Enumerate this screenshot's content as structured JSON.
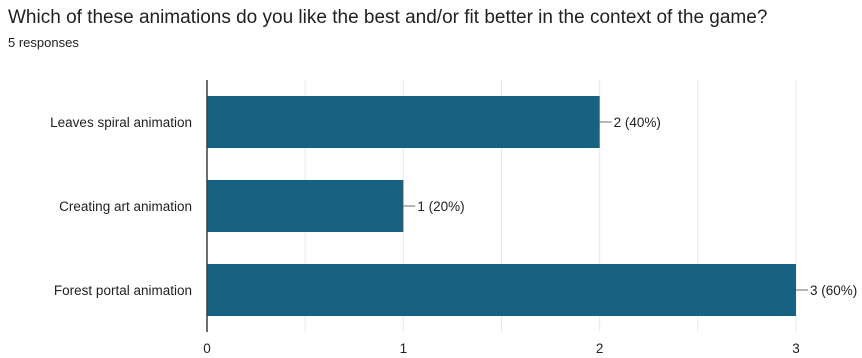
{
  "question": {
    "title": "Which of these animations do you like the best and/or fit better in the context of the game?",
    "responses": "5 responses"
  },
  "colors": {
    "bar": "#176282",
    "grid": "#e8e8e8",
    "axis": "#3c3c3c",
    "leader": "#6e6e6e"
  },
  "chart_data": {
    "type": "bar",
    "orientation": "horizontal",
    "categories": [
      "Leaves spiral animation",
      "Creating art animation",
      "Forest portal animation"
    ],
    "values": [
      2,
      1,
      3
    ],
    "data_labels": [
      "2 (40%)",
      "1 (20%)",
      "3 (60%)"
    ],
    "xlim": [
      0,
      3
    ],
    "xticks": [
      0,
      1,
      2,
      3
    ],
    "xtick_labels": [
      "0",
      "1",
      "2",
      "3"
    ],
    "minor_gridlines": true,
    "grid": true,
    "legend": "none"
  }
}
